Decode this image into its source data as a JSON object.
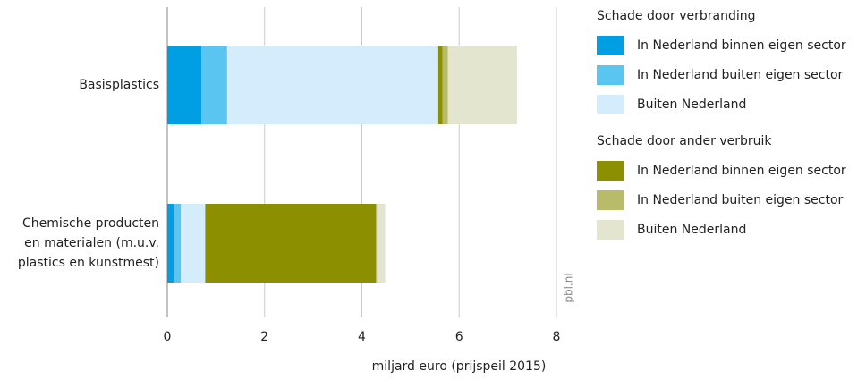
{
  "chart_data": {
    "type": "stacked_barh",
    "categories": [
      "Basisplastics",
      "Chemische producten\nen materialen (m.u.v.\nplastics en kunstmest)"
    ],
    "legend_titles": [
      "Schade door verbranding",
      "Schade door ander verbruik"
    ],
    "series": [
      {
        "name": "In Nederland binnen eigen sector",
        "color": "#009fe3",
        "values": [
          0.7,
          0.13
        ]
      },
      {
        "name": "In Nederland buiten eigen sector",
        "color": "#5bc5f2",
        "values": [
          0.53,
          0.15
        ]
      },
      {
        "name": "Buiten Nederland",
        "color": "#d4ecfb",
        "values": [
          4.34,
          0.5
        ]
      },
      {
        "name": "In Nederland binnen eigen sector",
        "color": "#8c9000",
        "values": [
          0.09,
          3.51
        ]
      },
      {
        "name": "In Nederland buiten eigen sector",
        "color": "#b8bb6a",
        "values": [
          0.11,
          0.02
        ]
      },
      {
        "name": "Buiten Nederland",
        "color": "#e4e5cf",
        "values": [
          1.42,
          0.17
        ]
      }
    ],
    "xlim": [
      0,
      8
    ],
    "xticks": [
      0,
      2,
      4,
      6,
      8
    ],
    "xlabel": "miljard euro (prijspeil 2015)",
    "watermark": "pbl.nl",
    "grid": true
  }
}
